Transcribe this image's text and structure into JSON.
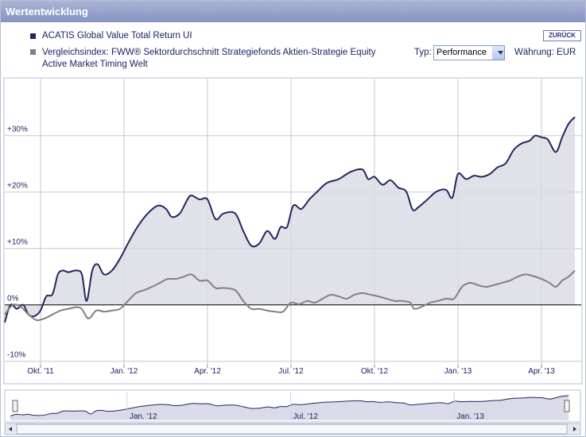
{
  "header": {
    "title": "Wertentwicklung",
    "back_button": "ZURÜCK"
  },
  "controls": {
    "type_label": "Typ:",
    "type_value": "Performance",
    "currency": "Währung: EUR"
  },
  "chart_data": {
    "type": "line",
    "series": [
      {
        "name": "ACATIS Global Value Total Return UI",
        "color": "#23265e",
        "fill": "#d9d9e3",
        "x": [
          2011.643,
          2011.66,
          2011.679,
          2011.698,
          2011.714,
          2011.731,
          2011.75,
          2011.767,
          2011.786,
          2011.802,
          2011.817,
          2011.833,
          2011.857,
          2011.874,
          2011.888,
          2011.905,
          2011.921,
          2011.94,
          2011.964,
          2011.988,
          2012.012,
          2012.04,
          2012.071,
          2012.102,
          2012.126,
          2012.143,
          2012.167,
          2012.19,
          2012.202,
          2012.226,
          2012.25,
          2012.274,
          2012.298,
          2012.333,
          2012.357,
          2012.381,
          2012.405,
          2012.429,
          2012.452,
          2012.469,
          2012.488,
          2012.507,
          2012.531,
          2012.555,
          2012.579,
          2012.607,
          2012.643,
          2012.679,
          2012.714,
          2012.731,
          2012.75,
          2012.774,
          2012.798,
          2012.821,
          2012.845,
          2012.864,
          2012.881,
          2012.905,
          2012.936,
          2012.964,
          2012.983,
          2013.0,
          2013.024,
          2013.048,
          2013.071,
          2013.095,
          2013.119,
          2013.143,
          2013.167,
          2013.19,
          2013.214,
          2013.231,
          2013.25,
          2013.269,
          2013.293,
          2013.312,
          2013.331,
          2013.35
        ],
        "values": [
          -3.1,
          0,
          -0.7,
          0,
          -1.7,
          -2.0,
          -1.0,
          1.5,
          1.9,
          5.4,
          6.1,
          5.8,
          6.1,
          5.4,
          0.7,
          6.1,
          7.2,
          5.4,
          6.1,
          8.2,
          10.9,
          13.8,
          16.2,
          17.6,
          17.0,
          15.6,
          16.2,
          18.7,
          19.4,
          18.7,
          18.7,
          15.2,
          16.2,
          16.2,
          13.1,
          10.5,
          10.9,
          13.1,
          11.7,
          13.8,
          13.8,
          17.6,
          17.0,
          18.7,
          20.1,
          21.6,
          22.3,
          23.6,
          24.0,
          22.3,
          22.7,
          21.3,
          22.1,
          20.8,
          20.1,
          16.9,
          17.3,
          18.5,
          20.1,
          20.4,
          19.0,
          23.2,
          22.3,
          22.9,
          22.7,
          23.2,
          24.4,
          25.1,
          27.5,
          28.6,
          29.1,
          30.0,
          29.7,
          29.3,
          27.1,
          29.7,
          32.1,
          33.3
        ]
      },
      {
        "name": "Vergleichsindex: FWW® Sektordurchschnitt Strategiefonds Aktien-Strategie Equity Active Market Timing Welt",
        "color": "#808080",
        "x": [
          2011.643,
          2011.667,
          2011.69,
          2011.714,
          2011.738,
          2011.762,
          2011.786,
          2011.81,
          2011.833,
          2011.869,
          2011.893,
          2011.917,
          2011.94,
          2011.964,
          2011.988,
          2012.012,
          2012.036,
          2012.06,
          2012.083,
          2012.107,
          2012.131,
          2012.155,
          2012.179,
          2012.202,
          2012.226,
          2012.25,
          2012.274,
          2012.298,
          2012.333,
          2012.357,
          2012.381,
          2012.405,
          2012.429,
          2012.452,
          2012.476,
          2012.5,
          2012.524,
          2012.548,
          2012.571,
          2012.595,
          2012.619,
          2012.643,
          2012.667,
          2012.69,
          2012.714,
          2012.738,
          2012.762,
          2012.786,
          2012.81,
          2012.833,
          2012.857,
          2012.869,
          2012.893,
          2012.917,
          2012.94,
          2012.964,
          2012.988,
          2013.012,
          2013.036,
          2013.06,
          2013.083,
          2013.107,
          2013.131,
          2013.155,
          2013.179,
          2013.202,
          2013.226,
          2013.25,
          2013.274,
          2013.293,
          2013.312,
          2013.331,
          2013.35
        ],
        "values": [
          -1.7,
          0,
          -0.3,
          -1.7,
          -2.7,
          -2.4,
          -1.7,
          -1.0,
          -0.7,
          -0.5,
          -2.4,
          -1.0,
          -1.2,
          -1.0,
          -0.7,
          0.7,
          2.1,
          2.6,
          3.2,
          3.9,
          4.6,
          4.6,
          5.0,
          5.4,
          4.3,
          4.3,
          3.0,
          3.0,
          2.6,
          0.7,
          -0.7,
          -0.7,
          -1.0,
          -1.2,
          -1.2,
          0.4,
          0.1,
          0.7,
          0.4,
          1.1,
          1.8,
          1.5,
          1.1,
          1.8,
          2.1,
          1.8,
          1.5,
          1.1,
          0.7,
          0.7,
          0.4,
          -0.7,
          -0.3,
          0.4,
          0.7,
          1.1,
          1.1,
          3.2,
          3.9,
          3.5,
          3.2,
          3.5,
          3.9,
          4.3,
          5.0,
          5.4,
          5.1,
          4.6,
          3.9,
          3.2,
          4.3,
          5.0,
          6.1
        ]
      }
    ],
    "xlim": [
      2011.643,
      2013.369
    ],
    "xticks": [
      {
        "value": 2011.75,
        "label": "Okt. '11"
      },
      {
        "value": 2012.0,
        "label": "Jan. '12"
      },
      {
        "value": 2012.25,
        "label": "Apr. '12"
      },
      {
        "value": 2012.5,
        "label": "Jul. '12"
      },
      {
        "value": 2012.75,
        "label": "Okt. '12"
      },
      {
        "value": 2013.0,
        "label": "Jan. '13"
      },
      {
        "value": 2013.25,
        "label": "Apr. '13"
      }
    ],
    "ylim": [
      -10.6,
      40.1
    ],
    "yticks": [
      {
        "value": -10,
        "label": "-10%"
      },
      {
        "value": 0,
        "label": "0%"
      },
      {
        "value": 10,
        "label": "+10%"
      },
      {
        "value": 20,
        "label": "+20%"
      },
      {
        "value": 30,
        "label": "+30%"
      }
    ],
    "grid": true,
    "navigator_xticks": [
      {
        "value": 2012.0,
        "label": "Jan. '12"
      },
      {
        "value": 2012.5,
        "label": "Jul. '12"
      },
      {
        "value": 2013.0,
        "label": "Jan. '13"
      }
    ]
  }
}
